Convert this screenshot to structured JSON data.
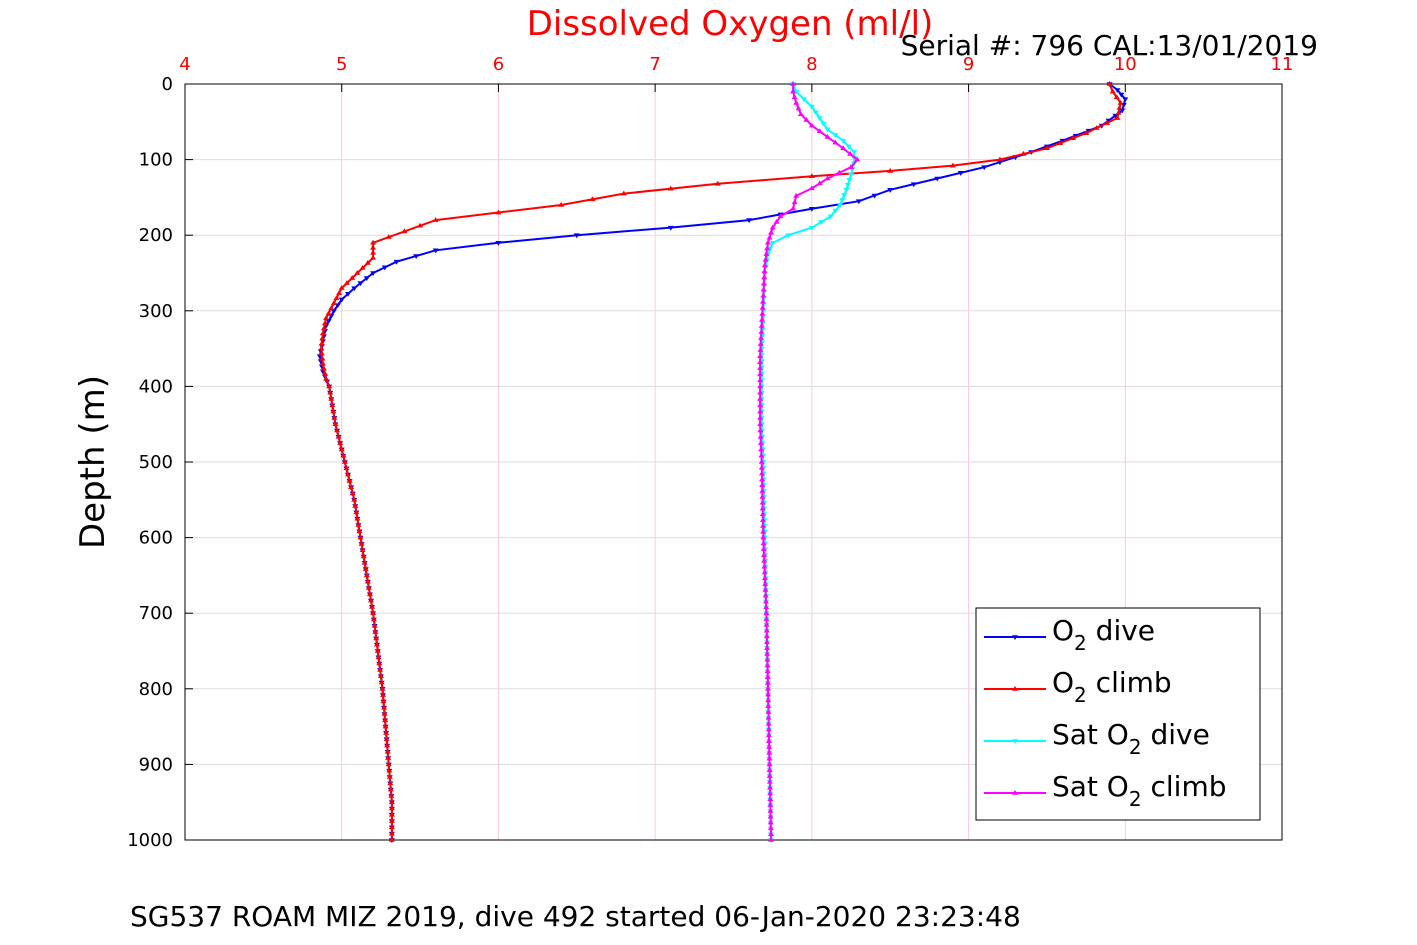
{
  "chart_data": {
    "type": "line",
    "title": "Dissolved Oxygen (ml/l)",
    "serial_text": "Serial #: 796  CAL:13/01/2019",
    "caption": "SG537 ROAM MIZ 2019, dive 492 started 06-Jan-2020 23:23:48",
    "xlabel": "Dissolved Oxygen (ml/l)",
    "ylabel": "Depth (m)",
    "xlim": [
      4,
      11
    ],
    "ylim": [
      0,
      1000
    ],
    "y_reversed": true,
    "x_axis_position": "top",
    "grid": true,
    "legend_position": "bottom-right",
    "xticks": [
      "4",
      "5",
      "6",
      "7",
      "8",
      "9",
      "10",
      "11"
    ],
    "yticks": [
      "0",
      "100",
      "200",
      "300",
      "400",
      "500",
      "600",
      "700",
      "800",
      "900",
      "1000"
    ],
    "series": [
      {
        "name": "O2 dive",
        "legend_main": "O",
        "legend_sub": "2",
        "legend_tail": " dive",
        "color": "#0000ff",
        "marker": "triangle-down",
        "points": [
          [
            9.9,
            0
          ],
          [
            9.95,
            8
          ],
          [
            10.0,
            20
          ],
          [
            9.98,
            35
          ],
          [
            9.85,
            55
          ],
          [
            9.6,
            75
          ],
          [
            9.4,
            90
          ],
          [
            9.1,
            110
          ],
          [
            8.8,
            125
          ],
          [
            8.5,
            140
          ],
          [
            8.3,
            155
          ],
          [
            8.0,
            165
          ],
          [
            7.6,
            180
          ],
          [
            7.1,
            190
          ],
          [
            6.5,
            200
          ],
          [
            6.0,
            210
          ],
          [
            5.6,
            220
          ],
          [
            5.35,
            235
          ],
          [
            5.2,
            250
          ],
          [
            5.08,
            270
          ],
          [
            5.0,
            285
          ],
          [
            4.95,
            300
          ],
          [
            4.9,
            320
          ],
          [
            4.88,
            340
          ],
          [
            4.86,
            360
          ],
          [
            4.88,
            380
          ],
          [
            4.92,
            400
          ],
          [
            4.96,
            450
          ],
          [
            5.02,
            500
          ],
          [
            5.08,
            550
          ],
          [
            5.12,
            600
          ],
          [
            5.16,
            650
          ],
          [
            5.2,
            700
          ],
          [
            5.23,
            750
          ],
          [
            5.26,
            800
          ],
          [
            5.28,
            850
          ],
          [
            5.3,
            900
          ],
          [
            5.32,
            950
          ],
          [
            5.32,
            1000
          ]
        ]
      },
      {
        "name": "O2 climb",
        "legend_main": "O",
        "legend_sub": "2",
        "legend_tail": " climb",
        "color": "#ff0000",
        "marker": "triangle-up",
        "points": [
          [
            9.9,
            0
          ],
          [
            9.92,
            10
          ],
          [
            9.97,
            25
          ],
          [
            9.95,
            45
          ],
          [
            9.75,
            65
          ],
          [
            9.5,
            85
          ],
          [
            9.2,
            100
          ],
          [
            8.9,
            108
          ],
          [
            8.5,
            115
          ],
          [
            8.0,
            122
          ],
          [
            7.4,
            132
          ],
          [
            6.8,
            145
          ],
          [
            6.4,
            160
          ],
          [
            6.0,
            170
          ],
          [
            5.6,
            180
          ],
          [
            5.4,
            195
          ],
          [
            5.2,
            210
          ],
          [
            5.2,
            230
          ],
          [
            5.1,
            250
          ],
          [
            5.0,
            270
          ],
          [
            4.95,
            290
          ],
          [
            4.9,
            310
          ],
          [
            4.88,
            330
          ],
          [
            4.87,
            350
          ],
          [
            4.88,
            370
          ],
          [
            4.9,
            390
          ],
          [
            4.92,
            400
          ],
          [
            4.96,
            450
          ],
          [
            5.02,
            500
          ],
          [
            5.08,
            550
          ],
          [
            5.12,
            600
          ],
          [
            5.16,
            650
          ],
          [
            5.2,
            700
          ],
          [
            5.23,
            750
          ],
          [
            5.26,
            800
          ],
          [
            5.28,
            850
          ],
          [
            5.3,
            900
          ],
          [
            5.32,
            950
          ],
          [
            5.32,
            1000
          ]
        ]
      },
      {
        "name": "Sat O2 dive",
        "legend_main": "Sat O",
        "legend_sub": "2",
        "legend_tail": " dive",
        "color": "#00ffff",
        "marker": "triangle-down",
        "points": [
          [
            7.88,
            0
          ],
          [
            7.9,
            10
          ],
          [
            7.95,
            20
          ],
          [
            8.0,
            30
          ],
          [
            8.05,
            45
          ],
          [
            8.1,
            60
          ],
          [
            8.2,
            75
          ],
          [
            8.27,
            90
          ],
          [
            8.27,
            105
          ],
          [
            8.25,
            120
          ],
          [
            8.22,
            140
          ],
          [
            8.18,
            160
          ],
          [
            8.12,
            175
          ],
          [
            8.0,
            190
          ],
          [
            7.85,
            200
          ],
          [
            7.75,
            210
          ],
          [
            7.72,
            225
          ],
          [
            7.7,
            250
          ],
          [
            7.69,
            300
          ],
          [
            7.68,
            350
          ],
          [
            7.68,
            400
          ],
          [
            7.68,
            450
          ],
          [
            7.69,
            500
          ],
          [
            7.7,
            600
          ],
          [
            7.71,
            700
          ],
          [
            7.72,
            800
          ],
          [
            7.73,
            900
          ],
          [
            7.74,
            1000
          ]
        ]
      },
      {
        "name": "Sat O2 climb",
        "legend_main": "Sat O",
        "legend_sub": "2",
        "legend_tail": " climb",
        "color": "#ff00ff",
        "marker": "triangle-up",
        "points": [
          [
            7.88,
            0
          ],
          [
            7.88,
            10
          ],
          [
            7.9,
            25
          ],
          [
            7.93,
            40
          ],
          [
            8.0,
            55
          ],
          [
            8.1,
            70
          ],
          [
            8.2,
            85
          ],
          [
            8.29,
            100
          ],
          [
            8.25,
            110
          ],
          [
            8.1,
            125
          ],
          [
            8.0,
            138
          ],
          [
            7.9,
            148
          ],
          [
            7.88,
            165
          ],
          [
            7.8,
            175
          ],
          [
            7.75,
            190
          ],
          [
            7.72,
            210
          ],
          [
            7.7,
            240
          ],
          [
            7.69,
            280
          ],
          [
            7.68,
            320
          ],
          [
            7.67,
            360
          ],
          [
            7.67,
            400
          ],
          [
            7.67,
            450
          ],
          [
            7.68,
            500
          ],
          [
            7.69,
            600
          ],
          [
            7.71,
            700
          ],
          [
            7.72,
            800
          ],
          [
            7.73,
            900
          ],
          [
            7.74,
            1000
          ]
        ]
      }
    ]
  }
}
